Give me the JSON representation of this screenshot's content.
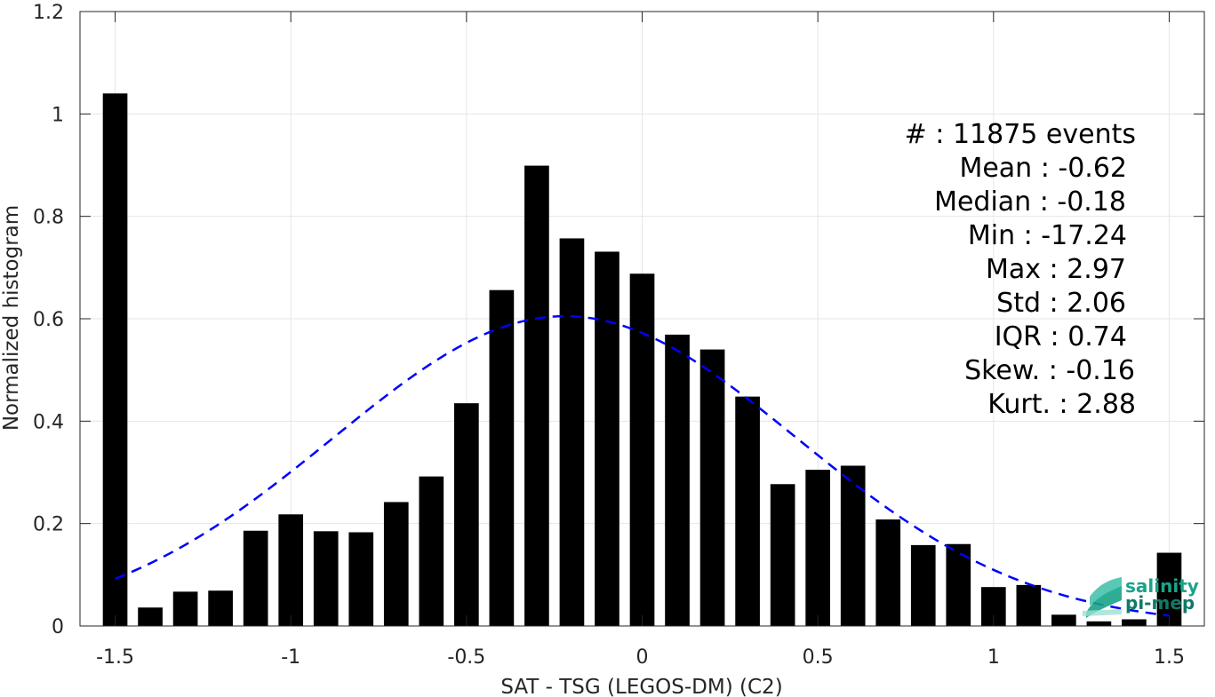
{
  "chart_data": {
    "type": "bar",
    "xlabel": "SAT - TSG (LEGOS-DM) (C2)",
    "ylabel": "Normalized histogram",
    "xlim": [
      -1.6,
      1.6
    ],
    "ylim": [
      0,
      1.2
    ],
    "grid": true,
    "x_ticks": [
      -1.5,
      -1,
      -0.5,
      0,
      0.5,
      1,
      1.5
    ],
    "x_tick_labels": [
      "-1.5",
      "-1",
      "-0.5",
      "0",
      "0.5",
      "1",
      "1.5"
    ],
    "y_ticks": [
      0,
      0.2,
      0.4,
      0.6,
      0.8,
      1,
      1.2
    ],
    "y_tick_labels": [
      "0",
      "0.2",
      "0.4",
      "0.6",
      "0.8",
      "1",
      "1.2"
    ],
    "bar_color": "#000000",
    "bar_width": 0.07,
    "bins": [
      -1.5,
      -1.4,
      -1.3,
      -1.2,
      -1.1,
      -1.0,
      -0.9,
      -0.8,
      -0.7,
      -0.6,
      -0.5,
      -0.4,
      -0.3,
      -0.2,
      -0.1,
      0.0,
      0.1,
      0.2,
      0.3,
      0.4,
      0.5,
      0.6,
      0.7,
      0.8,
      0.9,
      1.0,
      1.1,
      1.2,
      1.3,
      1.4,
      1.5
    ],
    "values": [
      1.04,
      0.036,
      0.067,
      0.069,
      0.186,
      0.218,
      0.185,
      0.183,
      0.242,
      0.292,
      0.435,
      0.656,
      0.899,
      0.757,
      0.731,
      0.688,
      0.569,
      0.54,
      0.448,
      0.277,
      0.305,
      0.313,
      0.208,
      0.158,
      0.16,
      0.076,
      0.08,
      0.022,
      0.009,
      0.013,
      0.143
    ],
    "fit_curve": {
      "style": "dashed",
      "color": "#0000ff",
      "mean": -0.22,
      "std": 0.66,
      "peak": 0.605,
      "x_range": [
        -1.5,
        1.5
      ]
    },
    "stats": [
      "#  : 11875 events",
      "Mean : -0.62",
      "Median : -0.18",
      "Min : -17.24",
      "Max : 2.97",
      "Std : 2.06",
      "IQR : 0.74",
      "Skew. : -0.16",
      "Kurt. : 2.88"
    ]
  },
  "logo": {
    "line1": "salinity",
    "line2": "pi-mep",
    "color": "#1aa38a"
  }
}
